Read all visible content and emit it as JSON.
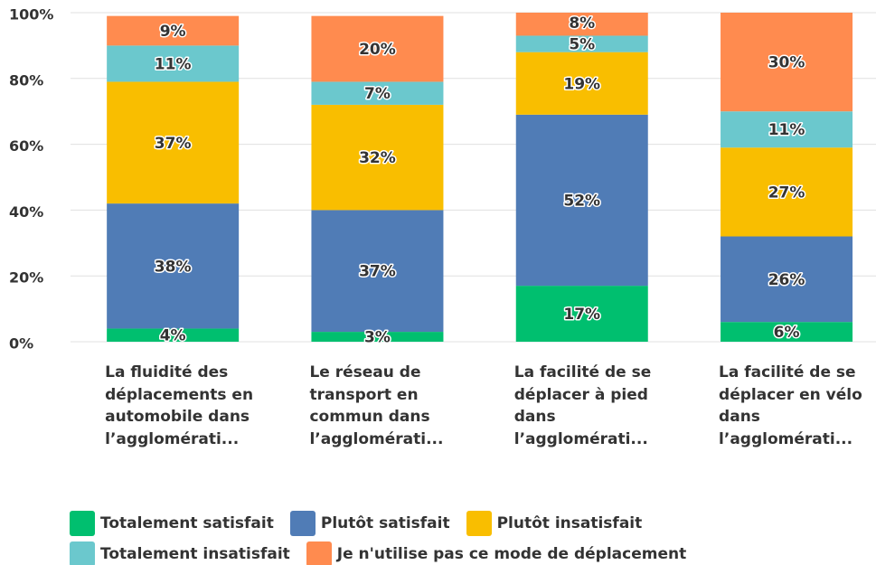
{
  "chart_data": {
    "type": "stacked_bar",
    "categories": [
      "La fluidité des déplacements en automobile dans l’agglomérati...",
      "Le réseau de transport en commun dans l’agglomérati...",
      "La facilité de se déplacer à pied dans l’agglomérati...",
      "La facilité de se déplacer en vélo dans l’agglomérati..."
    ],
    "series": [
      {
        "name": "Totalement satisfait",
        "color": "#00bf6f",
        "values": [
          4,
          3,
          17,
          6
        ],
        "value_labels": [
          "4%",
          "3%",
          "17%",
          "6%"
        ]
      },
      {
        "name": "Plutôt satisfait",
        "color": "#507cb6",
        "values": [
          38,
          37,
          52,
          26
        ],
        "value_labels": [
          "38%",
          "37%",
          "52%",
          "26%"
        ]
      },
      {
        "name": "Plutôt insatisfait",
        "color": "#f9be00",
        "values": [
          37,
          32,
          19,
          27
        ],
        "value_labels": [
          "37%",
          "32%",
          "19%",
          "27%"
        ]
      },
      {
        "name": "Totalement insatisfait",
        "color": "#6bc8cd",
        "values": [
          11,
          7,
          5,
          11
        ],
        "value_labels": [
          "11%",
          "7%",
          "5%",
          "11%"
        ]
      },
      {
        "name": "Je n'utilise pas ce mode de déplacement",
        "color": "#ff8b4f",
        "values": [
          9,
          20,
          8,
          30
        ],
        "value_labels": [
          "9%",
          "20%",
          "8%",
          "30%"
        ]
      }
    ],
    "ylim": [
      0,
      100
    ],
    "yticks": [
      {
        "value": 0,
        "label": "0%"
      },
      {
        "value": 20,
        "label": "20%"
      },
      {
        "value": 40,
        "label": "40%"
      },
      {
        "value": 60,
        "label": "60%"
      },
      {
        "value": 80,
        "label": "80%"
      },
      {
        "value": 100,
        "label": "100%"
      }
    ],
    "grid": true
  }
}
